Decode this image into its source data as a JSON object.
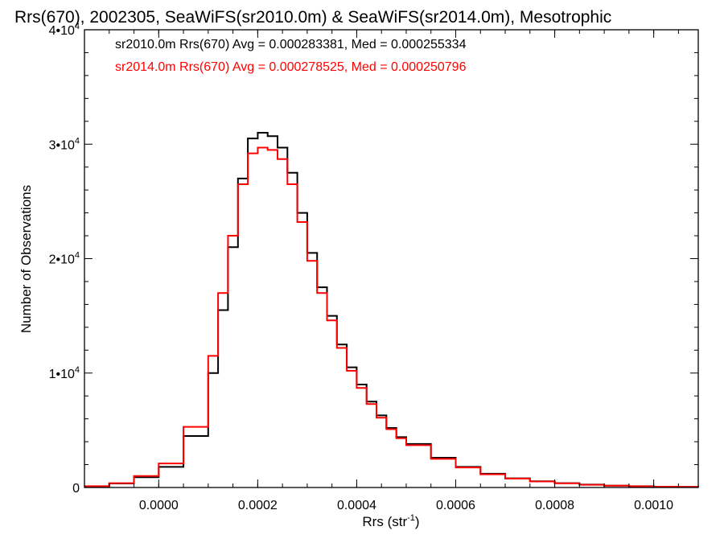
{
  "chart_data": {
    "type": "line",
    "title": "Rrs(670), 2002305, SeaWiFS(sr2010.0m) & SeaWiFS(sr2014.0m), Mesotrophic",
    "xlabel_main": "Rrs (str",
    "xlabel_sup": "-1",
    "xlabel_close": ")",
    "ylabel": "Number of Observations",
    "xlim": [
      -0.00015,
      0.00109
    ],
    "ylim": [
      0,
      40000
    ],
    "xticks": [
      0.0,
      0.0002,
      0.0004,
      0.0006,
      0.0008,
      0.001
    ],
    "xtick_labels": [
      "0.0000",
      "0.0002",
      "0.0004",
      "0.0006",
      "0.0008",
      "0.0010"
    ],
    "yticks": [
      0,
      10000,
      20000,
      30000,
      40000
    ],
    "ytick_labels": [
      {
        "mant": "0",
        "exp": ""
      },
      {
        "mant": "1•10",
        "exp": "4"
      },
      {
        "mant": "2•10",
        "exp": "4"
      },
      {
        "mant": "3•10",
        "exp": "4"
      },
      {
        "mant": "4•10",
        "exp": "4"
      }
    ],
    "grid": false,
    "legend_position": "top-left",
    "series": [
      {
        "name": "sr2010.0m",
        "color": "#000000",
        "stats_label": "sr2010.0m Rrs(670) Avg = 0.000283381, Med = 0.000255334",
        "x": [
          -0.00015,
          -0.0001,
          -5e-05,
          0.0,
          5e-05,
          0.0001,
          0.00012,
          0.00014,
          0.00016,
          0.00018,
          0.0002,
          0.00022,
          0.00024,
          0.00026,
          0.00028,
          0.0003,
          0.00032,
          0.00034,
          0.00036,
          0.00038,
          0.0004,
          0.00042,
          0.00044,
          0.00046,
          0.00048,
          0.0005,
          0.00055,
          0.0006,
          0.00065,
          0.0007,
          0.00075,
          0.0008,
          0.00085,
          0.0009,
          0.00095,
          0.001,
          0.00105,
          0.00109
        ],
        "y": [
          100,
          350,
          900,
          1800,
          4500,
          10000,
          15500,
          21000,
          27000,
          30500,
          31000,
          30700,
          29700,
          27500,
          24000,
          20500,
          17500,
          15000,
          12500,
          10500,
          9000,
          7500,
          6300,
          5200,
          4400,
          3800,
          2600,
          1800,
          1200,
          800,
          550,
          380,
          250,
          160,
          110,
          70,
          50,
          40
        ]
      },
      {
        "name": "sr2014.0m",
        "color": "#ff0000",
        "stats_label": "sr2014.0m Rrs(670) Avg = 0.000278525, Med = 0.000250796",
        "x": [
          -0.00015,
          -0.0001,
          -5e-05,
          0.0,
          5e-05,
          0.0001,
          0.00012,
          0.00014,
          0.00016,
          0.00018,
          0.0002,
          0.00022,
          0.00024,
          0.00026,
          0.00028,
          0.0003,
          0.00032,
          0.00034,
          0.00036,
          0.00038,
          0.0004,
          0.00042,
          0.00044,
          0.00046,
          0.00048,
          0.0005,
          0.00055,
          0.0006,
          0.00065,
          0.0007,
          0.00075,
          0.0008,
          0.00085,
          0.0009,
          0.00095,
          0.001,
          0.00105,
          0.00109
        ],
        "y": [
          110,
          380,
          1000,
          2100,
          5300,
          11500,
          17000,
          22000,
          26500,
          29200,
          29700,
          29500,
          28700,
          26500,
          23200,
          19800,
          17000,
          14600,
          12200,
          10200,
          8700,
          7300,
          6100,
          5100,
          4300,
          3700,
          2500,
          1750,
          1150,
          780,
          530,
          370,
          240,
          155,
          105,
          68,
          48,
          38
        ]
      }
    ]
  }
}
